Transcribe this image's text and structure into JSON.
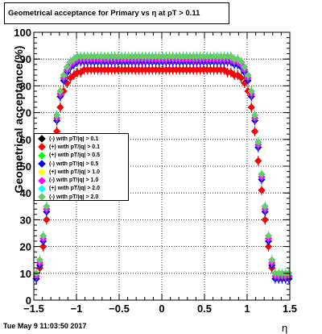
{
  "chart_data": {
    "type": "scatter",
    "title": "Geometrical acceptance for Primary vs   η at pT > 0.11",
    "xlabel": "η",
    "ylabel": "Geometrical acceptance(%)",
    "xlim": [
      -1.5,
      1.5
    ],
    "ylim": [
      0,
      100
    ],
    "x_ticks": [
      "−1.5",
      "−1",
      "−0.5",
      "0",
      "0.5",
      "1",
      "1.5"
    ],
    "y_ticks": [
      "0",
      "10",
      "20",
      "30",
      "40",
      "50",
      "60",
      "70",
      "80",
      "90",
      "100"
    ],
    "grid": true,
    "legend_position": "middle-left",
    "timestamp": "Tue May  9 11:03:50 2017",
    "x": [
      -1.47,
      -1.43,
      -1.39,
      -1.35,
      -1.31,
      -1.27,
      -1.23,
      -1.19,
      -1.15,
      -1.11,
      -1.07,
      -1.03,
      -0.99,
      -0.95,
      -0.91,
      -0.87,
      -0.83,
      -0.79,
      -0.75,
      -0.71,
      -0.67,
      -0.63,
      -0.59,
      -0.55,
      -0.51,
      -0.47,
      -0.43,
      -0.39,
      -0.35,
      -0.31,
      -0.27,
      -0.23,
      -0.19,
      -0.15,
      -0.11,
      -0.07,
      -0.03,
      0.01,
      0.05,
      0.09,
      0.13,
      0.17,
      0.21,
      0.25,
      0.29,
      0.33,
      0.37,
      0.41,
      0.45,
      0.49,
      0.53,
      0.57,
      0.61,
      0.65,
      0.69,
      0.73,
      0.77,
      0.81,
      0.85,
      0.89,
      0.93,
      0.97,
      1.01,
      1.05,
      1.09,
      1.13,
      1.17,
      1.21,
      1.25,
      1.29,
      1.33,
      1.37,
      1.41,
      1.45,
      1.49
    ],
    "series": [
      {
        "name": "(-) with pT/|q| > 0.1",
        "color": "#000000",
        "values": [
          8,
          12,
          20,
          30,
          41,
          52,
          63,
          72,
          78,
          81,
          83,
          84,
          85,
          85,
          86,
          86,
          86,
          86,
          86,
          86,
          86,
          86,
          86,
          86,
          86,
          86,
          86,
          86,
          86,
          86,
          86,
          86,
          86,
          86,
          86,
          86,
          86,
          86,
          86,
          86,
          86,
          86,
          86,
          86,
          86,
          86,
          86,
          86,
          86,
          86,
          86,
          86,
          86,
          86,
          86,
          86,
          85,
          85,
          84,
          84,
          83,
          81,
          78,
          72,
          63,
          52,
          41,
          30,
          20,
          12,
          8,
          8,
          8,
          8,
          8
        ]
      },
      {
        "name": "(+) with pT/|q| > 0.1",
        "color": "#ff0000",
        "values": [
          8,
          12,
          20,
          30,
          41,
          52,
          63,
          72,
          78,
          81,
          83,
          84,
          85,
          85,
          86,
          86,
          86,
          86,
          86,
          86,
          86,
          86,
          86,
          86,
          86,
          86,
          86,
          86,
          86,
          86,
          86,
          86,
          86,
          86,
          86,
          86,
          86,
          86,
          86,
          86,
          86,
          86,
          86,
          86,
          86,
          86,
          86,
          86,
          86,
          86,
          86,
          86,
          86,
          86,
          86,
          86,
          85,
          85,
          84,
          84,
          83,
          81,
          78,
          72,
          63,
          52,
          41,
          30,
          20,
          12,
          8,
          8,
          8,
          8,
          8
        ]
      },
      {
        "name": "(+) with pT/|q| > 0.5",
        "color": "#00ff00",
        "values": [
          8,
          13,
          22,
          33,
          45,
          57,
          67,
          76,
          82,
          85,
          87,
          88,
          89,
          89,
          89,
          89,
          89,
          89,
          89,
          89,
          89,
          89,
          89,
          89,
          89,
          89,
          89,
          89,
          89,
          89,
          89,
          89,
          89,
          89,
          89,
          89,
          89,
          89,
          89,
          89,
          89,
          89,
          89,
          89,
          89,
          89,
          89,
          89,
          89,
          89,
          89,
          89,
          89,
          89,
          89,
          89,
          89,
          89,
          88,
          88,
          87,
          85,
          82,
          76,
          67,
          57,
          45,
          33,
          22,
          13,
          8,
          8,
          8,
          8,
          8
        ]
      },
      {
        "name": "(-) with pT/|q| > 0.5",
        "color": "#0000ff",
        "values": [
          8,
          13,
          22,
          33,
          45,
          57,
          67,
          76,
          82,
          85,
          87,
          88,
          89,
          89,
          89,
          89,
          89,
          89,
          89,
          89,
          89,
          89,
          89,
          89,
          89,
          89,
          89,
          89,
          89,
          89,
          89,
          89,
          89,
          89,
          89,
          89,
          89,
          89,
          89,
          89,
          89,
          89,
          89,
          89,
          89,
          89,
          89,
          89,
          89,
          89,
          89,
          89,
          89,
          89,
          89,
          89,
          89,
          89,
          88,
          88,
          87,
          85,
          82,
          76,
          67,
          57,
          45,
          33,
          22,
          13,
          8,
          8,
          8,
          8,
          8
        ]
      },
      {
        "name": "(+) with pT/|q| > 1.0",
        "color": "#ffff00",
        "values": [
          9,
          14,
          23,
          34,
          46,
          58,
          68,
          77,
          83,
          86,
          88,
          89,
          90,
          90,
          90,
          90,
          90,
          90,
          90,
          90,
          90,
          90,
          90,
          90,
          90,
          90,
          90,
          90,
          90,
          90,
          90,
          90,
          90,
          90,
          90,
          90,
          90,
          90,
          90,
          90,
          90,
          90,
          90,
          90,
          90,
          90,
          90,
          90,
          90,
          90,
          90,
          90,
          90,
          90,
          90,
          90,
          90,
          90,
          89,
          89,
          88,
          86,
          83,
          77,
          68,
          58,
          46,
          34,
          23,
          14,
          9,
          9,
          9,
          9,
          9
        ]
      },
      {
        "name": "(-) with pT/|q| > 1.0",
        "color": "#ff00ff",
        "values": [
          9,
          14,
          23,
          34,
          46,
          58,
          68,
          77,
          83,
          86,
          88,
          89,
          90,
          90,
          90,
          90,
          90,
          90,
          90,
          90,
          90,
          90,
          90,
          90,
          90,
          90,
          90,
          90,
          90,
          90,
          90,
          90,
          90,
          90,
          90,
          90,
          90,
          90,
          90,
          90,
          90,
          90,
          90,
          90,
          90,
          90,
          90,
          90,
          90,
          90,
          90,
          90,
          90,
          90,
          90,
          90,
          90,
          90,
          89,
          89,
          88,
          86,
          83,
          77,
          68,
          58,
          46,
          34,
          23,
          14,
          9,
          9,
          9,
          9,
          9
        ]
      },
      {
        "name": "(+) with pT/|q| > 2.0",
        "color": "#00ffff",
        "values": [
          10,
          15,
          24,
          35,
          47,
          59,
          69,
          78,
          84,
          87,
          89,
          90,
          91,
          91,
          91,
          91,
          91,
          91,
          91,
          91,
          91,
          91,
          91,
          91,
          91,
          91,
          91,
          91,
          91,
          91,
          91,
          91,
          91,
          91,
          91,
          91,
          91,
          91,
          91,
          91,
          91,
          91,
          91,
          91,
          91,
          91,
          91,
          91,
          91,
          91,
          91,
          91,
          91,
          91,
          91,
          91,
          91,
          91,
          90,
          90,
          89,
          87,
          84,
          78,
          69,
          59,
          47,
          35,
          24,
          15,
          10,
          10,
          10,
          10,
          10
        ]
      },
      {
        "name": "(-) with pT/|q| > 2.0",
        "color": "#66cc66",
        "values": [
          10,
          15,
          24,
          35,
          47,
          59,
          69,
          78,
          84,
          87,
          89,
          90,
          91,
          91,
          91,
          91,
          91,
          91,
          91,
          91,
          91,
          91,
          91,
          91,
          91,
          91,
          91,
          91,
          91,
          91,
          91,
          91,
          91,
          91,
          91,
          91,
          91,
          91,
          91,
          91,
          91,
          91,
          91,
          91,
          91,
          91,
          91,
          91,
          91,
          91,
          91,
          91,
          91,
          91,
          91,
          91,
          91,
          91,
          90,
          90,
          89,
          87,
          84,
          78,
          69,
          59,
          47,
          35,
          24,
          15,
          10,
          10,
          10,
          10,
          10
        ]
      }
    ]
  }
}
